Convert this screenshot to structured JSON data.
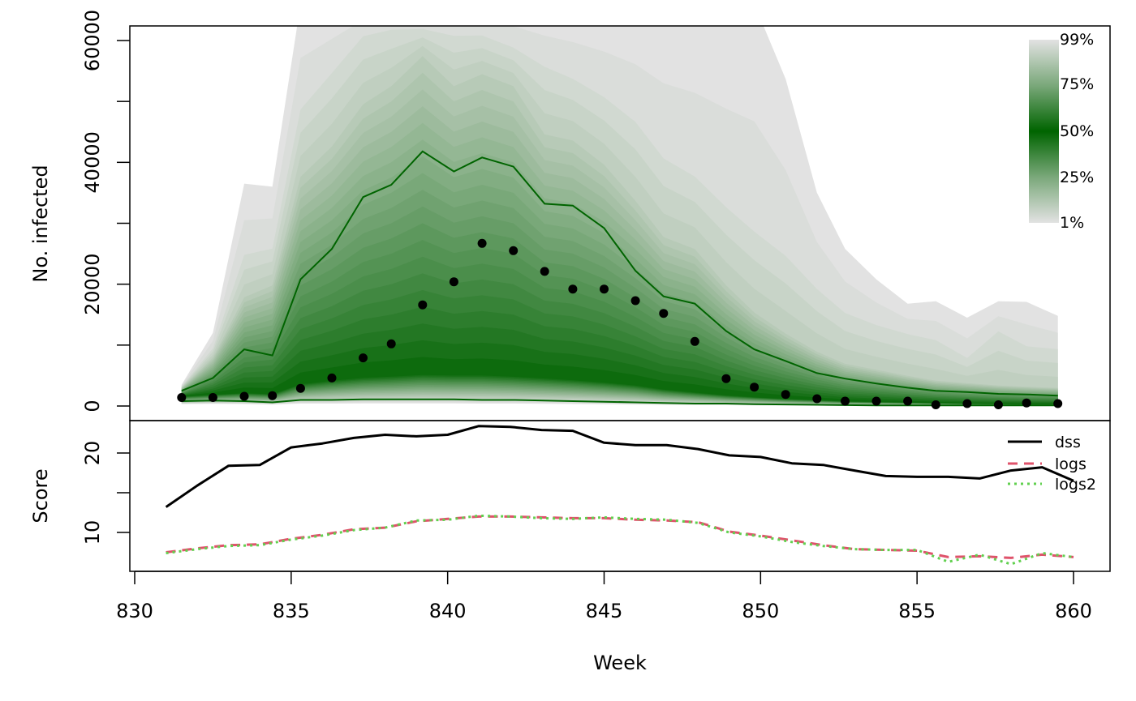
{
  "chart_data": [
    {
      "type": "fan",
      "xlabel": "",
      "ylabel": "No. infected",
      "xlim": [
        830,
        860
      ],
      "ylim": [
        0,
        62000
      ],
      "yticks": [
        0,
        20000,
        40000,
        60000
      ],
      "yticks_minor": [
        10000,
        30000,
        50000
      ],
      "ytick_labels": [
        "0",
        "20000",
        "40000",
        "60000"
      ],
      "colorbar": {
        "labels": [
          "99%",
          "75%",
          "50%",
          "25%",
          "1%"
        ],
        "colors": [
          "#e2e2e2",
          "#006400",
          "#e2e2e2"
        ]
      },
      "fan": {
        "x": [
          831.5,
          832.5,
          833.5,
          834.4,
          835.3,
          836.3,
          837.3,
          838.2,
          839.2,
          840.2,
          841.1,
          842.1,
          843.1,
          844.0,
          845.0,
          846.0,
          846.9,
          847.9,
          848.9,
          849.8,
          850.8,
          851.8,
          852.7,
          853.7,
          854.7,
          855.6,
          856.6,
          857.6,
          858.5,
          859.5
        ],
        "median": [
          1600,
          1900,
          2200,
          2000,
          3700,
          4300,
          4800,
          5000,
          5300,
          5200,
          5200,
          5000,
          4700,
          4400,
          4000,
          3500,
          2800,
          2300,
          1800,
          1500,
          1200,
          1000,
          800,
          700,
          600,
          500,
          400,
          350,
          300,
          300
        ],
        "line_low": [
          800,
          900,
          800,
          600,
          1000,
          1000,
          1100,
          1100,
          1100,
          1100,
          1000,
          1000,
          900,
          800,
          700,
          600,
          500,
          400,
          400,
          300,
          250,
          200,
          150,
          100,
          100,
          100,
          100,
          100,
          100,
          100
        ],
        "line_high": [
          2500,
          4600,
          9300,
          8300,
          20800,
          25800,
          34300,
          36300,
          41800,
          38500,
          40800,
          39300,
          33200,
          32900,
          29200,
          22200,
          18000,
          16800,
          12300,
          9300,
          7400,
          5400,
          4500,
          3700,
          3000,
          2500,
          2300,
          2000,
          1900,
          1700
        ],
        "band_99": [
          3500,
          12000,
          36500,
          36000,
          66000,
          66000,
          66000,
          66000,
          66000,
          66000,
          66000,
          66000,
          66000,
          66000,
          66000,
          66000,
          66000,
          66000,
          66000,
          66000,
          53700,
          35000,
          25800,
          20800,
          16800,
          17200,
          14500,
          17200,
          17100,
          14800
        ],
        "band_95": [
          3200,
          9500,
          25000,
          26000,
          49000,
          55000,
          61000,
          62000,
          62000,
          61000,
          61000,
          59000,
          56000,
          54000,
          51000,
          47000,
          41000,
          38000,
          33000,
          29000,
          25000,
          19500,
          15500,
          13500,
          12000,
          11000,
          8000,
          12500,
          10000,
          9500
        ],
        "band_90": [
          3000,
          8000,
          18000,
          20000,
          38000,
          43000,
          50000,
          53000,
          58000,
          53000,
          55000,
          53000,
          45000,
          44000,
          40000,
          34000,
          28000,
          26000,
          20000,
          15500,
          12000,
          9000,
          7000,
          6000,
          5000,
          4200,
          3800,
          3400,
          3200,
          3000
        ]
      },
      "points": {
        "x": [
          831.5,
          832.5,
          833.5,
          834.4,
          835.3,
          836.3,
          837.3,
          838.2,
          839.2,
          840.2,
          841.1,
          842.1,
          843.1,
          844.0,
          845.0,
          846.0,
          846.9,
          847.9,
          848.9,
          849.8,
          850.8,
          851.8,
          852.7,
          853.7,
          854.7,
          855.6,
          856.6,
          857.6,
          858.5,
          859.5
        ],
        "y": [
          1400,
          1400,
          1600,
          1700,
          2900,
          4600,
          7900,
          10200,
          16600,
          20400,
          26700,
          25500,
          22100,
          19200,
          19200,
          17300,
          15200,
          10600,
          4500,
          3100,
          1900,
          1200,
          800,
          800,
          800,
          200,
          400,
          200,
          500,
          400
        ]
      }
    },
    {
      "type": "line",
      "xlabel": "Week",
      "ylabel": "Score",
      "xlim": [
        830,
        860
      ],
      "ylim": [
        5,
        24
      ],
      "xticks": [
        830,
        835,
        840,
        845,
        850,
        855,
        860
      ],
      "xtick_labels": [
        "830",
        "835",
        "840",
        "845",
        "850",
        "855",
        "860"
      ],
      "yticks": [
        10,
        15,
        20
      ],
      "yticks_minor": [
        15
      ],
      "ytick_labels": [
        "10",
        "20"
      ],
      "legend_position": "top-right",
      "x": [
        831,
        832,
        833,
        834,
        835,
        836,
        837,
        838,
        839,
        840,
        841,
        842,
        843,
        844,
        845,
        846,
        847,
        848,
        849,
        850,
        851,
        852,
        853,
        854,
        855,
        856,
        857,
        858,
        859,
        860
      ],
      "series": [
        {
          "name": "dss",
          "color": "#000000",
          "style": "solid",
          "values": [
            13.2,
            15.9,
            18.4,
            18.5,
            20.7,
            21.2,
            21.9,
            22.3,
            22.1,
            22.3,
            23.4,
            23.3,
            22.9,
            22.8,
            21.3,
            21.0,
            21.0,
            20.5,
            19.7,
            19.5,
            18.7,
            18.5,
            17.8,
            17.1,
            17.0,
            17.0,
            16.8,
            17.8,
            18.2,
            16.5
          ]
        },
        {
          "name": "logs",
          "color": "#df536b",
          "style": "dashed",
          "values": [
            7.5,
            8.0,
            8.4,
            8.5,
            9.2,
            9.7,
            10.4,
            10.6,
            11.4,
            11.7,
            12.0,
            12.0,
            11.9,
            11.8,
            11.8,
            11.6,
            11.5,
            11.3,
            10.1,
            9.6,
            9.0,
            8.4,
            7.9,
            7.8,
            7.7,
            6.9,
            7.0,
            6.8,
            7.2,
            6.9
          ]
        },
        {
          "name": "logs2",
          "color": "#61d04f",
          "style": "dotted",
          "values": [
            7.4,
            7.9,
            8.3,
            8.4,
            9.1,
            9.6,
            10.3,
            10.6,
            11.5,
            11.6,
            12.1,
            12.0,
            11.8,
            11.7,
            11.9,
            11.7,
            11.6,
            11.2,
            10.0,
            9.5,
            8.8,
            8.3,
            7.9,
            7.8,
            7.8,
            6.3,
            7.2,
            6.0,
            7.4,
            6.9
          ]
        }
      ]
    }
  ]
}
